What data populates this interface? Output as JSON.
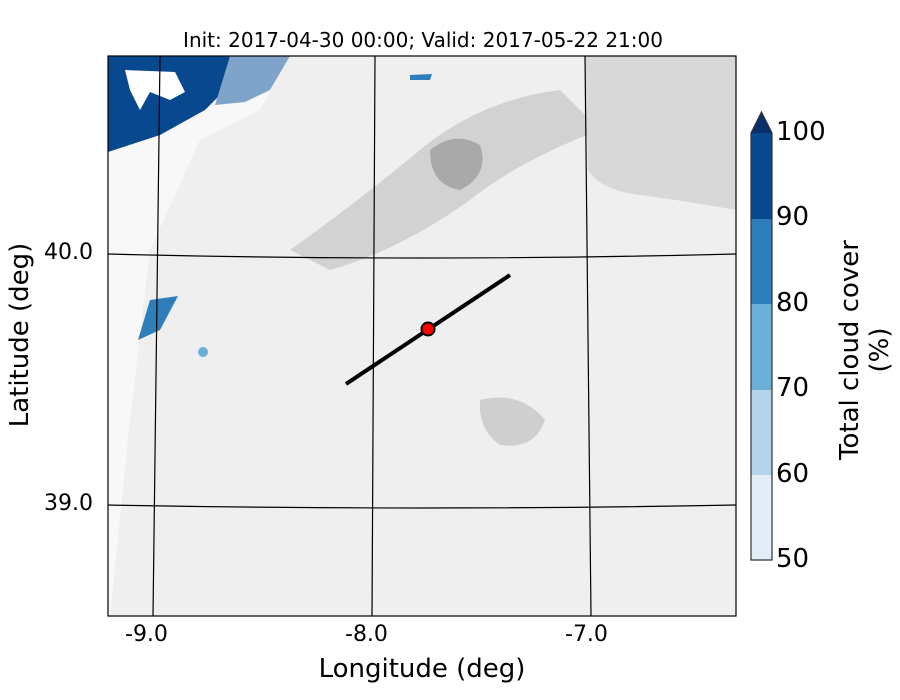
{
  "title": "Init: 2017-04-30 00:00; Valid: 2017-05-22 21:00",
  "map": {
    "xlabel": "Longitude (deg)",
    "ylabel": "Latitude (deg)",
    "lon_ticks": [
      "-9.0",
      "-8.0",
      "-7.0"
    ],
    "lat_ticks": [
      "40.0",
      "39.0"
    ],
    "lon_range": [
      -9.2,
      -6.35
    ],
    "lat_range": [
      38.55,
      40.8
    ],
    "background": "terrain shaded in grays with contours",
    "transect": {
      "start": [
        -8.12,
        39.48
      ],
      "end": [
        -7.38,
        39.92
      ]
    },
    "marker": {
      "lon": -7.75,
      "lat": 39.7,
      "color": "#ff0000"
    }
  },
  "colorbar": {
    "label": "Total cloud cover (%)",
    "ticks": [
      "50",
      "60",
      "70",
      "80",
      "90",
      "100"
    ],
    "bins": [
      {
        "from": 50,
        "to": 60,
        "color": "#e2edf8"
      },
      {
        "from": 60,
        "to": 70,
        "color": "#b5d3ea"
      },
      {
        "from": 70,
        "to": 80,
        "color": "#6baed6"
      },
      {
        "from": 80,
        "to": 90,
        "color": "#2f7ebc"
      },
      {
        "from": 90,
        "to": 100,
        "color": "#08488e"
      }
    ],
    "extend_color": "#08306b"
  }
}
